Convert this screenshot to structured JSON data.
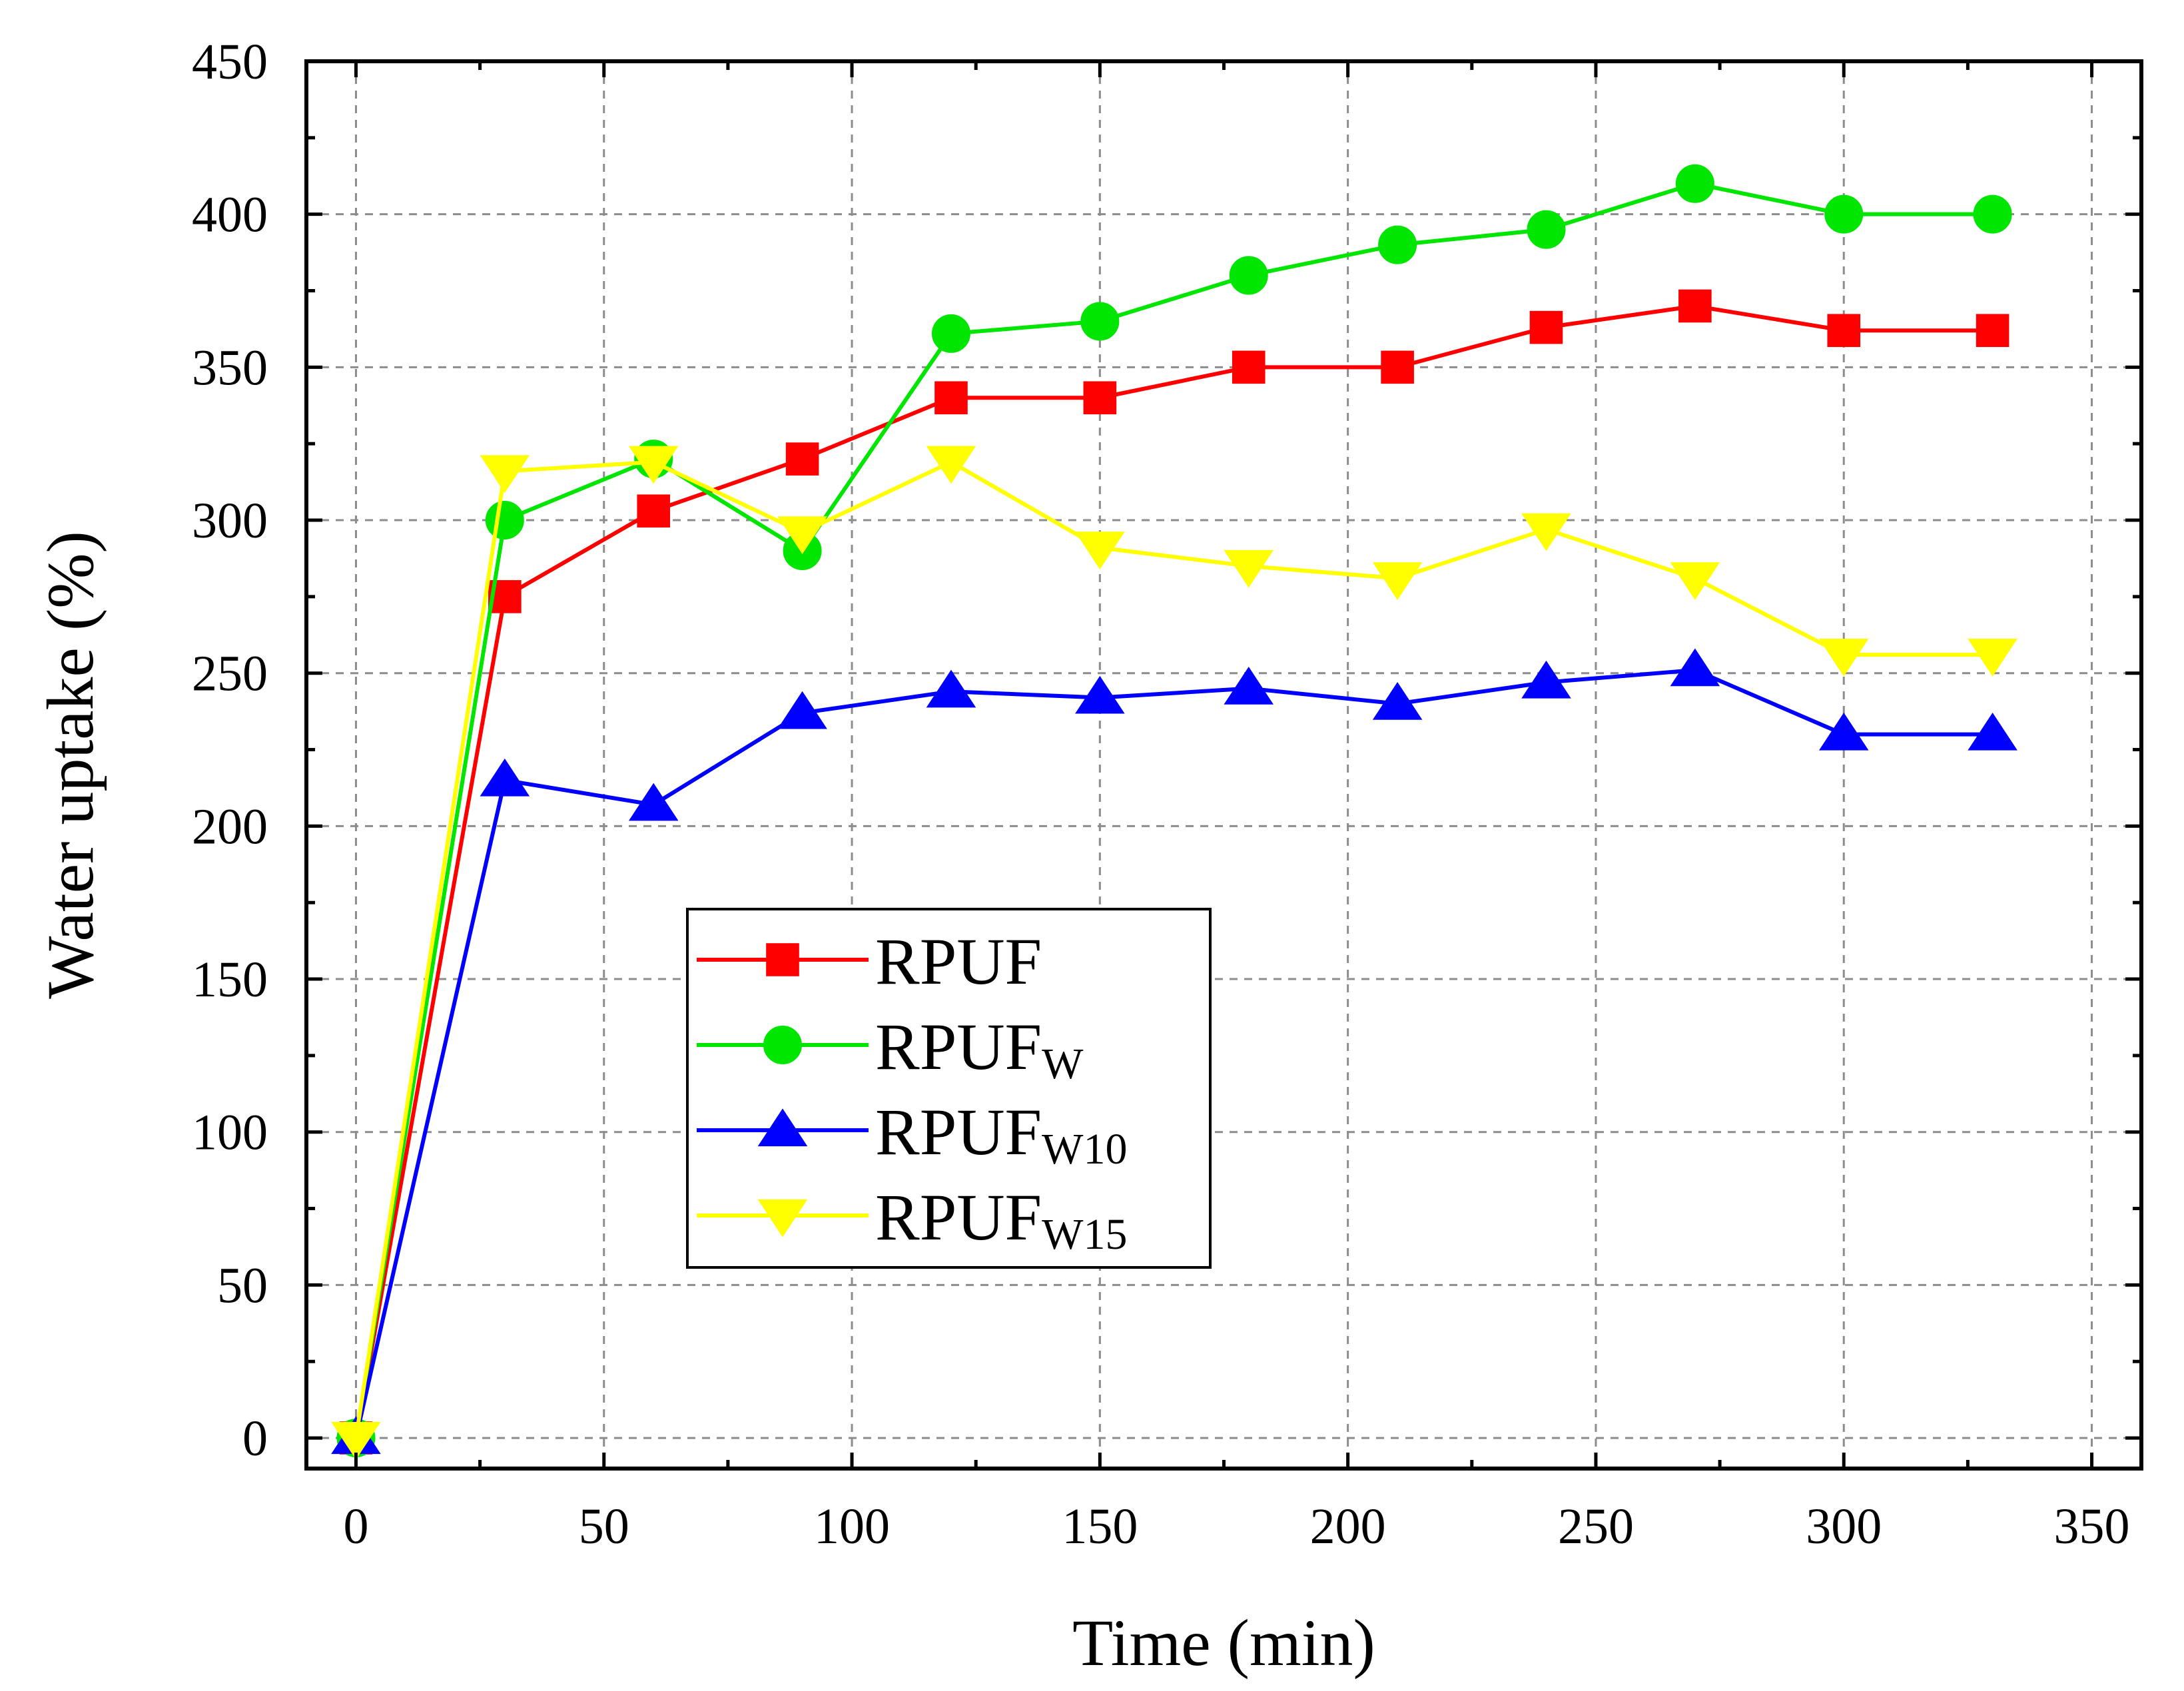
{
  "chart_data": {
    "type": "line",
    "title": "",
    "xlabel": "Time (min)",
    "ylabel": "Water uptake (%)",
    "xlim": [
      -10,
      360
    ],
    "ylim": [
      -10,
      450
    ],
    "xticks": [
      0,
      50,
      100,
      150,
      200,
      250,
      300,
      350
    ],
    "yticks": [
      0,
      50,
      100,
      150,
      200,
      250,
      300,
      350,
      400,
      450
    ],
    "grid": true,
    "legend_position": "center-left",
    "x": [
      0,
      30,
      60,
      90,
      120,
      150,
      180,
      210,
      240,
      270,
      300,
      330
    ],
    "series": [
      {
        "name": "RPUF",
        "name_main": "RPUF",
        "name_sub": "",
        "color": "#ff0000",
        "marker": "square",
        "values": [
          0,
          275,
          303,
          320,
          340,
          340,
          350,
          350,
          363,
          370,
          362,
          362
        ]
      },
      {
        "name": "RPUFW",
        "name_main": "RPUF",
        "name_sub": "W",
        "color": "#00e600",
        "marker": "circle",
        "values": [
          0,
          300,
          320,
          290,
          361,
          365,
          380,
          390,
          395,
          410,
          400,
          400
        ]
      },
      {
        "name": "RPUFW10",
        "name_main": "RPUF",
        "name_sub": "W10",
        "color": "#0000ff",
        "marker": "triangle-up",
        "values": [
          0,
          215,
          207,
          237,
          244,
          242,
          245,
          240,
          247,
          251,
          230,
          230
        ]
      },
      {
        "name": "RPUFW15",
        "name_main": "RPUF",
        "name_sub": "W15",
        "color": "#ffff00",
        "marker": "triangle-down",
        "values": [
          0,
          316,
          319,
          296,
          319,
          291,
          285,
          281,
          297,
          281,
          256,
          256
        ]
      }
    ]
  }
}
